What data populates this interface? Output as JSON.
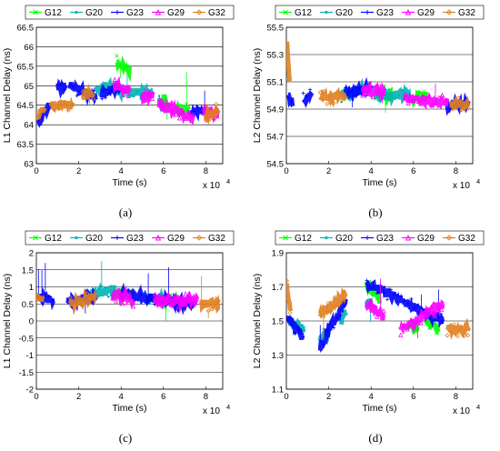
{
  "legend_entries": [
    "G12",
    "G20",
    "G23",
    "G29",
    "G32"
  ],
  "series_colors": {
    "G12": "#00ff00",
    "G20": "#00b4b4",
    "G23": "#0000ff",
    "G29": "#ff00ff",
    "G32": "#e08020"
  },
  "captions": [
    "(a)",
    "(b)",
    "(c)",
    "(d)"
  ],
  "chart_data": [
    {
      "type": "scatter",
      "caption": "(a)",
      "xlabel": "Time (s)",
      "ylabel": "L1 Channel Delay (ns)",
      "x_multiplier_label": "x 10",
      "x_multiplier_exp": "4",
      "xlim": [
        0,
        88000
      ],
      "ylim": [
        63,
        66.5
      ],
      "xticks": [
        0,
        20000,
        40000,
        60000,
        80000
      ],
      "xtick_labels": [
        "0",
        "2",
        "4",
        "6",
        "8"
      ],
      "yticks": [
        63,
        63.5,
        64,
        64.5,
        65,
        65.5,
        66,
        66.5
      ],
      "ytick_labels": [
        "63",
        "63.5",
        "64",
        "64.5",
        "65",
        "65.5",
        "66",
        "66.5"
      ],
      "grid": "horizontal",
      "legend_position": "top",
      "series": [
        {
          "name": "G12",
          "segments": [
            [
              38000,
              65.6
            ],
            [
              44000,
              65.4
            ],
            [
              60000,
              64.7
            ],
            [
              62000,
              64.5
            ],
            [
              66000,
              64.4
            ],
            [
              72000,
              64.4
            ]
          ]
        },
        {
          "name": "G20",
          "segments": [
            [
              28000,
              64.9
            ],
            [
              37000,
              65.0
            ],
            [
              38000,
              64.9
            ],
            [
              55000,
              64.8
            ],
            [
              58000,
              64.6
            ],
            [
              60000,
              64.5
            ]
          ]
        },
        {
          "name": "G23",
          "segments": [
            [
              1000,
              64.1
            ],
            [
              6000,
              64.5
            ],
            [
              10000,
              64.9
            ],
            [
              14000,
              65.0
            ],
            [
              16000,
              65.0
            ],
            [
              28000,
              64.7
            ],
            [
              31000,
              64.8
            ],
            [
              40000,
              65.0
            ],
            [
              73000,
              64.3
            ],
            [
              80000,
              64.4
            ],
            [
              86000,
              64.3
            ]
          ]
        },
        {
          "name": "G29",
          "segments": [
            [
              37000,
              65.0
            ],
            [
              44000,
              64.9
            ],
            [
              50000,
              64.7
            ],
            [
              55000,
              64.8
            ],
            [
              58000,
              64.5
            ],
            [
              74000,
              64.2
            ],
            [
              79000,
              64.3
            ],
            [
              86000,
              64.3
            ]
          ]
        },
        {
          "name": "G32",
          "segments": [
            [
              500,
              64.2
            ],
            [
              4000,
              64.5
            ],
            [
              7000,
              64.5
            ],
            [
              17000,
              64.5
            ],
            [
              22000,
              64.7
            ],
            [
              27000,
              64.8
            ],
            [
              80000,
              64.2
            ],
            [
              86000,
              64.4
            ]
          ]
        }
      ]
    },
    {
      "type": "scatter",
      "caption": "(b)",
      "xlabel": "Time (s)",
      "ylabel": "L2 Channel Delay (ns)",
      "x_multiplier_label": "x 10",
      "x_multiplier_exp": "4",
      "xlim": [
        0,
        88000
      ],
      "ylim": [
        54.5,
        55.5
      ],
      "xticks": [
        0,
        20000,
        40000,
        60000,
        80000
      ],
      "xtick_labels": [
        "0",
        "2",
        "4",
        "6",
        "8"
      ],
      "yticks": [
        54.5,
        54.7,
        54.9,
        55.1,
        55.3,
        55.5
      ],
      "ytick_labels": [
        "54.5",
        "54.7",
        "54.9",
        "55.1",
        "55.3",
        "55.5"
      ],
      "grid": "horizontal",
      "legend_position": "top",
      "series": [
        {
          "name": "G12",
          "segments": [
            [
              42000,
              55.0
            ],
            [
              50000,
              55.0
            ],
            [
              60000,
              54.98
            ],
            [
              66000,
              55.0
            ],
            [
              72000,
              54.98
            ]
          ]
        },
        {
          "name": "G20",
          "segments": [
            [
              26000,
              55.0
            ],
            [
              38000,
              55.05
            ],
            [
              42000,
              55.0
            ],
            [
              58000,
              55.0
            ],
            [
              60000,
              54.98
            ]
          ]
        },
        {
          "name": "G23",
          "segments": [
            [
              800,
              55.0
            ],
            [
              3000,
              54.95
            ],
            [
              8000,
              54.97
            ],
            [
              12000,
              55.0
            ],
            [
              28000,
              55.02
            ],
            [
              40000,
              55.05
            ],
            [
              76000,
              54.92
            ],
            [
              86000,
              54.95
            ]
          ]
        },
        {
          "name": "G29",
          "segments": [
            [
              36000,
              55.05
            ],
            [
              46000,
              55.02
            ],
            [
              56000,
              54.98
            ],
            [
              76000,
              54.95
            ],
            [
              86000,
              54.97
            ]
          ]
        },
        {
          "name": "G32",
          "segments": [
            [
              300,
              55.4
            ],
            [
              1500,
              55.1
            ],
            [
              16000,
              54.98
            ],
            [
              28000,
              55.0
            ],
            [
              78000,
              54.93
            ],
            [
              86000,
              54.95
            ]
          ]
        }
      ]
    },
    {
      "type": "scatter",
      "caption": "(c)",
      "xlabel": "Time (s)",
      "ylabel": "L1 Channel Delay (ns)",
      "x_multiplier_label": "x 10",
      "x_multiplier_exp": "4",
      "xlim": [
        0,
        88000
      ],
      "ylim": [
        -2,
        2
      ],
      "xticks": [
        0,
        20000,
        40000,
        60000,
        80000
      ],
      "xtick_labels": [
        "0",
        "2",
        "4",
        "6",
        "8"
      ],
      "yticks": [
        -2,
        -1.5,
        -1,
        -0.5,
        0,
        0.5,
        1,
        1.5,
        2
      ],
      "ytick_labels": [
        "-2",
        "-1.5",
        "-1",
        "-0.5",
        "0",
        "0.5",
        "1",
        "1.5",
        "2"
      ],
      "grid": "horizontal",
      "legend_position": "top",
      "series": [
        {
          "name": "G12",
          "segments": [
            [
              36000,
              0.8
            ],
            [
              46000,
              0.7
            ],
            [
              58000,
              0.6
            ],
            [
              66000,
              0.6
            ],
            [
              72000,
              0.6
            ]
          ]
        },
        {
          "name": "G20",
          "segments": [
            [
              26000,
              0.8
            ],
            [
              37000,
              0.9
            ],
            [
              52000,
              0.7
            ],
            [
              60000,
              0.6
            ]
          ]
        },
        {
          "name": "G23",
          "segments": [
            [
              1000,
              0.7
            ],
            [
              8000,
              0.6
            ],
            [
              15000,
              0.6
            ],
            [
              28000,
              0.7
            ],
            [
              40000,
              0.8
            ],
            [
              74000,
              0.5
            ],
            [
              86000,
              0.5
            ]
          ]
        },
        {
          "name": "G29",
          "segments": [
            [
              36000,
              0.8
            ],
            [
              46000,
              0.6
            ],
            [
              56000,
              0.6
            ],
            [
              76000,
              0.6
            ],
            [
              86000,
              0.5
            ]
          ]
        },
        {
          "name": "G32",
          "segments": [
            [
              200,
              0.7
            ],
            [
              3000,
              0.6
            ],
            [
              16000,
              0.5
            ],
            [
              28000,
              0.7
            ],
            [
              78000,
              0.5
            ],
            [
              86000,
              0.5
            ]
          ]
        }
      ]
    },
    {
      "type": "scatter",
      "caption": "(d)",
      "xlabel": "Time (s)",
      "ylabel": "L2 Channel Delay (ns)",
      "x_multiplier_label": "x 10",
      "x_multiplier_exp": "4",
      "xlim": [
        0,
        88000
      ],
      "ylim": [
        1.1,
        1.9
      ],
      "xticks": [
        0,
        20000,
        40000,
        60000,
        80000
      ],
      "xtick_labels": [
        "0",
        "2",
        "4",
        "6",
        "8"
      ],
      "yticks": [
        1.1,
        1.3,
        1.5,
        1.7,
        1.9
      ],
      "ytick_labels": [
        "1.1",
        "1.3",
        "1.5",
        "1.7",
        "1.9"
      ],
      "grid": "horizontal",
      "legend_position": "top",
      "series": [
        {
          "name": "G12",
          "segments": [
            [
              38000,
              1.72
            ],
            [
              44000,
              1.62
            ],
            [
              58000,
              1.48
            ],
            [
              62000,
              1.45
            ],
            [
              66000,
              1.5
            ],
            [
              72000,
              1.45
            ]
          ]
        },
        {
          "name": "G20",
          "segments": [
            [
              1000,
              1.5
            ],
            [
              8000,
              1.45
            ],
            [
              16000,
              1.4
            ],
            [
              20000,
              1.45
            ],
            [
              26000,
              1.5
            ],
            [
              28000,
              1.55
            ],
            [
              38000,
              1.6
            ],
            [
              40000,
              1.62
            ]
          ]
        },
        {
          "name": "G23",
          "segments": [
            [
              800,
              1.52
            ],
            [
              8000,
              1.4
            ],
            [
              16000,
              1.35
            ],
            [
              28000,
              1.62
            ],
            [
              38000,
              1.72
            ],
            [
              74000,
              1.5
            ],
            [
              86000,
              1.45
            ]
          ]
        },
        {
          "name": "G29",
          "segments": [
            [
              38000,
              1.6
            ],
            [
              46000,
              1.52
            ],
            [
              54000,
              1.45
            ],
            [
              74000,
              1.6
            ],
            [
              86000,
              1.6
            ]
          ]
        },
        {
          "name": "G32",
          "segments": [
            [
              200,
              1.7
            ],
            [
              2000,
              1.55
            ],
            [
              16000,
              1.55
            ],
            [
              28000,
              1.65
            ],
            [
              76000,
              1.45
            ],
            [
              86000,
              1.45
            ]
          ]
        }
      ]
    }
  ]
}
